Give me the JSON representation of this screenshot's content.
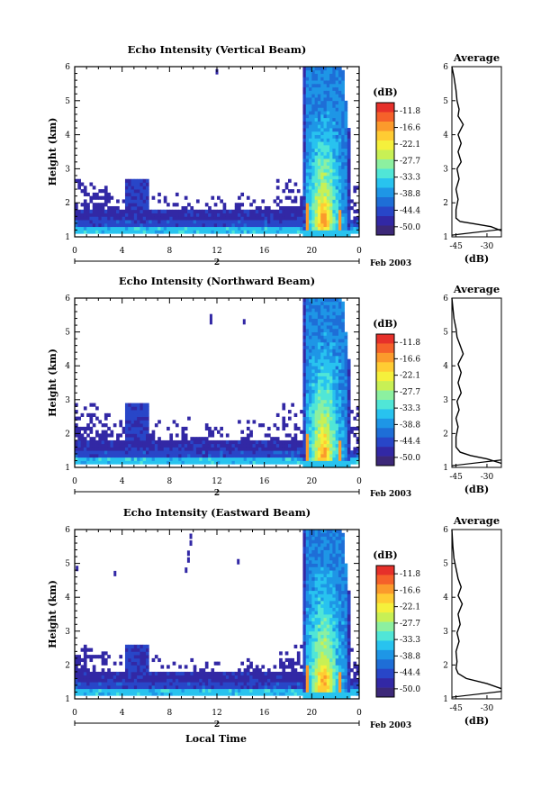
{
  "chart_data": {
    "type": "heatmap",
    "x_label": "Local Time",
    "date_label": "Feb 2003",
    "day_label": "2",
    "x_ticks": [
      "0",
      "4",
      "8",
      "12",
      "16",
      "20",
      "0"
    ],
    "x_tick_values": [
      0,
      4,
      8,
      12,
      16,
      20,
      24
    ],
    "xlim": [
      0,
      24
    ],
    "y_label": "Height (km)",
    "y_ticks": [
      "1",
      "2",
      "3",
      "4",
      "5",
      "6"
    ],
    "ylim": [
      1,
      6
    ],
    "colorbar": {
      "unit": "(dB)",
      "tick_labels": [
        "-11.8",
        "-16.6",
        "-22.1",
        "-27.7",
        "-33.3",
        "-38.8",
        "-44.4",
        "-50.0"
      ],
      "colors": [
        "#e6302a",
        "#f5612a",
        "#fb9a2c",
        "#ffcc33",
        "#f5f03c",
        "#c8f055",
        "#8cf0a0",
        "#50e6d7",
        "#28c3ef",
        "#1e96e6",
        "#1e6ed7",
        "#2846c8",
        "#3228a5",
        "#3c2878"
      ]
    },
    "panels": [
      {
        "title": "Echo Intensity (Vertical Beam)",
        "average_title": "Average",
        "average_xlabel": "(dB)",
        "average_xticks": [
          "-45",
          "-30"
        ],
        "average_xlim": [
          -47,
          -23
        ],
        "average_profile": [
          [
            -23,
            1.18
          ],
          [
            -28,
            1.3
          ],
          [
            -36,
            1.38
          ],
          [
            -43,
            1.45
          ],
          [
            -45,
            1.55
          ],
          [
            -45,
            1.8
          ],
          [
            -44,
            2.1
          ],
          [
            -45,
            2.4
          ],
          [
            -43.5,
            2.7
          ],
          [
            -44.5,
            3.0
          ],
          [
            -42.5,
            3.2
          ],
          [
            -44,
            3.5
          ],
          [
            -42.5,
            3.75
          ],
          [
            -44,
            4.0
          ],
          [
            -41.5,
            4.3
          ],
          [
            -44,
            4.55
          ],
          [
            -43.5,
            4.75
          ],
          [
            -44.5,
            5.0
          ],
          [
            -45,
            5.3
          ],
          [
            -46,
            5.7
          ],
          [
            -47,
            6.0
          ]
        ],
        "sparse_top": 2.7,
        "isolated_echoes": [
          [
            12,
            5.85
          ]
        ]
      },
      {
        "title": "Echo Intensity (Northward Beam)",
        "average_title": "Average",
        "average_xlabel": "(dB)",
        "average_xticks": [
          "-45",
          "-30"
        ],
        "average_xlim": [
          -47,
          -23
        ],
        "average_profile": [
          [
            -23,
            1.12
          ],
          [
            -30,
            1.25
          ],
          [
            -38,
            1.35
          ],
          [
            -43,
            1.45
          ],
          [
            -45,
            1.6
          ],
          [
            -45,
            1.9
          ],
          [
            -44,
            2.2
          ],
          [
            -45,
            2.45
          ],
          [
            -43.5,
            2.7
          ],
          [
            -44.5,
            2.95
          ],
          [
            -42.5,
            3.2
          ],
          [
            -44,
            3.5
          ],
          [
            -42.5,
            3.8
          ],
          [
            -44,
            4.05
          ],
          [
            -41.5,
            4.35
          ],
          [
            -43,
            4.6
          ],
          [
            -44.5,
            4.85
          ],
          [
            -45,
            5.1
          ],
          [
            -46,
            5.4
          ],
          [
            -47,
            6.0
          ]
        ],
        "sparse_top": 2.9,
        "isolated_echoes": [
          [
            11.5,
            5.45
          ],
          [
            11.5,
            5.3
          ],
          [
            14.3,
            5.3
          ]
        ]
      },
      {
        "title": "Echo Intensity (Eastward Beam)",
        "average_title": "Average",
        "average_xlabel": "(dB)",
        "average_xticks": [
          "-45",
          "-30"
        ],
        "average_xlim": [
          -47,
          -23
        ],
        "average_profile": [
          [
            -23,
            1.3
          ],
          [
            -30,
            1.45
          ],
          [
            -40,
            1.6
          ],
          [
            -44,
            1.75
          ],
          [
            -45,
            1.9
          ],
          [
            -44.5,
            2.1
          ],
          [
            -45,
            2.4
          ],
          [
            -43.5,
            2.7
          ],
          [
            -44.5,
            2.95
          ],
          [
            -43,
            3.2
          ],
          [
            -44,
            3.5
          ],
          [
            -42,
            3.8
          ],
          [
            -44,
            4.05
          ],
          [
            -42.5,
            4.3
          ],
          [
            -44,
            4.55
          ],
          [
            -45,
            4.85
          ],
          [
            -46,
            5.15
          ],
          [
            -46.5,
            5.5
          ],
          [
            -47,
            6.0
          ]
        ],
        "sparse_top": 2.6,
        "isolated_echoes": [
          [
            9.8,
            5.8
          ],
          [
            9.8,
            5.6
          ],
          [
            9.6,
            5.3
          ],
          [
            9.6,
            5.1
          ],
          [
            9.4,
            4.8
          ],
          [
            3.4,
            4.7
          ],
          [
            13.8,
            5.05
          ],
          [
            0.2,
            4.85
          ]
        ]
      }
    ]
  }
}
